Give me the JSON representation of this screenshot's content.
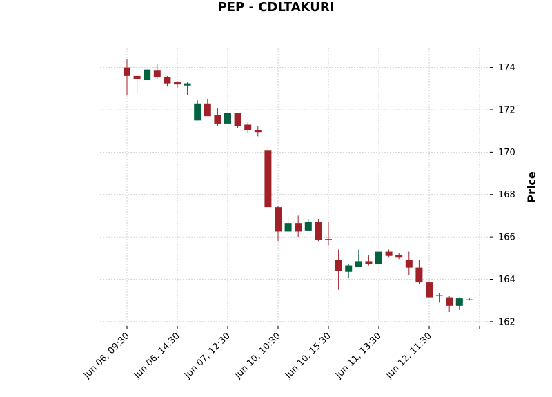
{
  "chart_data": {
    "type": "candlestick",
    "title": "PEP - CDLTAKURI",
    "xlabel": "",
    "ylabel": "Price",
    "ylim": [
      161.8,
      174.9
    ],
    "yticks": [
      162,
      164,
      166,
      168,
      170,
      172,
      174
    ],
    "y_axis_side": "right",
    "grid": true,
    "colors": {
      "up": "#006340",
      "down": "#a02128",
      "grid": "#b0b0b0"
    },
    "xtick_labels": [
      "Jun 06, 09:30",
      "Jun 06, 14:30",
      "Jun 07, 12:30",
      "Jun 10, 10:30",
      "Jun 10, 15:30",
      "Jun 11, 13:30",
      "Jun 12, 11:30",
      ""
    ],
    "candles": [
      {
        "open": 174.0,
        "high": 174.4,
        "low": 172.7,
        "close": 173.6
      },
      {
        "open": 173.6,
        "high": 173.6,
        "low": 172.8,
        "close": 173.45
      },
      {
        "open": 173.4,
        "high": 173.9,
        "low": 173.4,
        "close": 173.9
      },
      {
        "open": 173.85,
        "high": 174.15,
        "low": 173.45,
        "close": 173.55
      },
      {
        "open": 173.55,
        "high": 173.6,
        "low": 173.1,
        "close": 173.25
      },
      {
        "open": 173.3,
        "high": 173.35,
        "low": 173.05,
        "close": 173.2
      },
      {
        "open": 173.15,
        "high": 173.3,
        "low": 172.7,
        "close": 173.25
      },
      {
        "open": 171.5,
        "high": 172.45,
        "low": 171.5,
        "close": 172.3
      },
      {
        "open": 172.3,
        "high": 172.5,
        "low": 171.7,
        "close": 171.7
      },
      {
        "open": 171.75,
        "high": 172.1,
        "low": 171.25,
        "close": 171.35
      },
      {
        "open": 171.35,
        "high": 171.85,
        "low": 171.35,
        "close": 171.85
      },
      {
        "open": 171.85,
        "high": 171.85,
        "low": 171.15,
        "close": 171.25
      },
      {
        "open": 171.3,
        "high": 171.4,
        "low": 170.9,
        "close": 171.05
      },
      {
        "open": 171.05,
        "high": 171.25,
        "low": 170.75,
        "close": 170.95
      },
      {
        "open": 170.1,
        "high": 170.25,
        "low": 167.4,
        "close": 167.4
      },
      {
        "open": 167.4,
        "high": 167.45,
        "low": 165.8,
        "close": 166.25
      },
      {
        "open": 166.25,
        "high": 166.95,
        "low": 166.25,
        "close": 166.65
      },
      {
        "open": 166.65,
        "high": 167.0,
        "low": 166.0,
        "close": 166.25
      },
      {
        "open": 166.3,
        "high": 166.85,
        "low": 166.3,
        "close": 166.7
      },
      {
        "open": 166.7,
        "high": 166.85,
        "low": 165.8,
        "close": 165.85
      },
      {
        "open": 165.9,
        "high": 166.7,
        "low": 165.6,
        "close": 165.85
      },
      {
        "open": 164.9,
        "high": 165.4,
        "low": 163.5,
        "close": 164.4
      },
      {
        "open": 164.35,
        "high": 164.7,
        "low": 164.05,
        "close": 164.65
      },
      {
        "open": 164.6,
        "high": 165.4,
        "low": 164.6,
        "close": 164.85
      },
      {
        "open": 164.85,
        "high": 165.15,
        "low": 164.65,
        "close": 164.7
      },
      {
        "open": 164.7,
        "high": 165.3,
        "low": 164.7,
        "close": 165.3
      },
      {
        "open": 165.3,
        "high": 165.4,
        "low": 165.05,
        "close": 165.1
      },
      {
        "open": 165.15,
        "high": 165.25,
        "low": 164.95,
        "close": 165.05
      },
      {
        "open": 164.9,
        "high": 165.3,
        "low": 164.2,
        "close": 164.55
      },
      {
        "open": 164.55,
        "high": 164.9,
        "low": 163.75,
        "close": 163.85
      },
      {
        "open": 163.85,
        "high": 163.85,
        "low": 163.15,
        "close": 163.15
      },
      {
        "open": 163.25,
        "high": 163.35,
        "low": 162.9,
        "close": 163.2
      },
      {
        "open": 163.15,
        "high": 163.2,
        "low": 162.45,
        "close": 162.75
      },
      {
        "open": 162.75,
        "high": 163.15,
        "low": 162.55,
        "close": 163.1
      },
      {
        "open": 163.05,
        "high": 163.1,
        "low": 163.0,
        "close": 163.05
      }
    ]
  }
}
